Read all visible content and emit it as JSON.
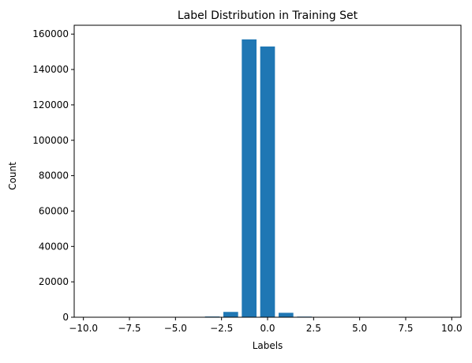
{
  "chart_data": {
    "type": "bar",
    "title": "Label Distribution in Training Set",
    "xlabel": "Labels",
    "ylabel": "Count",
    "x": [
      -10,
      -9,
      -8,
      -7,
      -6,
      -5,
      -4,
      -3,
      -2,
      -1,
      0,
      1,
      2,
      3,
      4,
      5,
      6,
      7,
      8,
      9,
      10
    ],
    "values": [
      3,
      10,
      18,
      20,
      40,
      60,
      120,
      400,
      3000,
      157000,
      153000,
      2500,
      350,
      90,
      40,
      25,
      15,
      8,
      5,
      3,
      2
    ],
    "xlim": [
      -10.5,
      10.5
    ],
    "ylim": [
      0,
      165000
    ],
    "xticks": [
      -10.0,
      -7.5,
      -5.0,
      -2.5,
      0.0,
      2.5,
      5.0,
      7.5,
      10.0
    ],
    "xtick_labels": [
      "−10.0",
      "−7.5",
      "−5.0",
      "−2.5",
      "0.0",
      "2.5",
      "5.0",
      "7.5",
      "10.0"
    ],
    "yticks": [
      0,
      20000,
      40000,
      60000,
      80000,
      100000,
      120000,
      140000,
      160000
    ],
    "ytick_labels": [
      "0",
      "20000",
      "40000",
      "60000",
      "80000",
      "100000",
      "120000",
      "140000",
      "160000"
    ],
    "bar_width": 0.8,
    "bar_color": "#1f77b4",
    "grid": false,
    "legend": "none"
  }
}
